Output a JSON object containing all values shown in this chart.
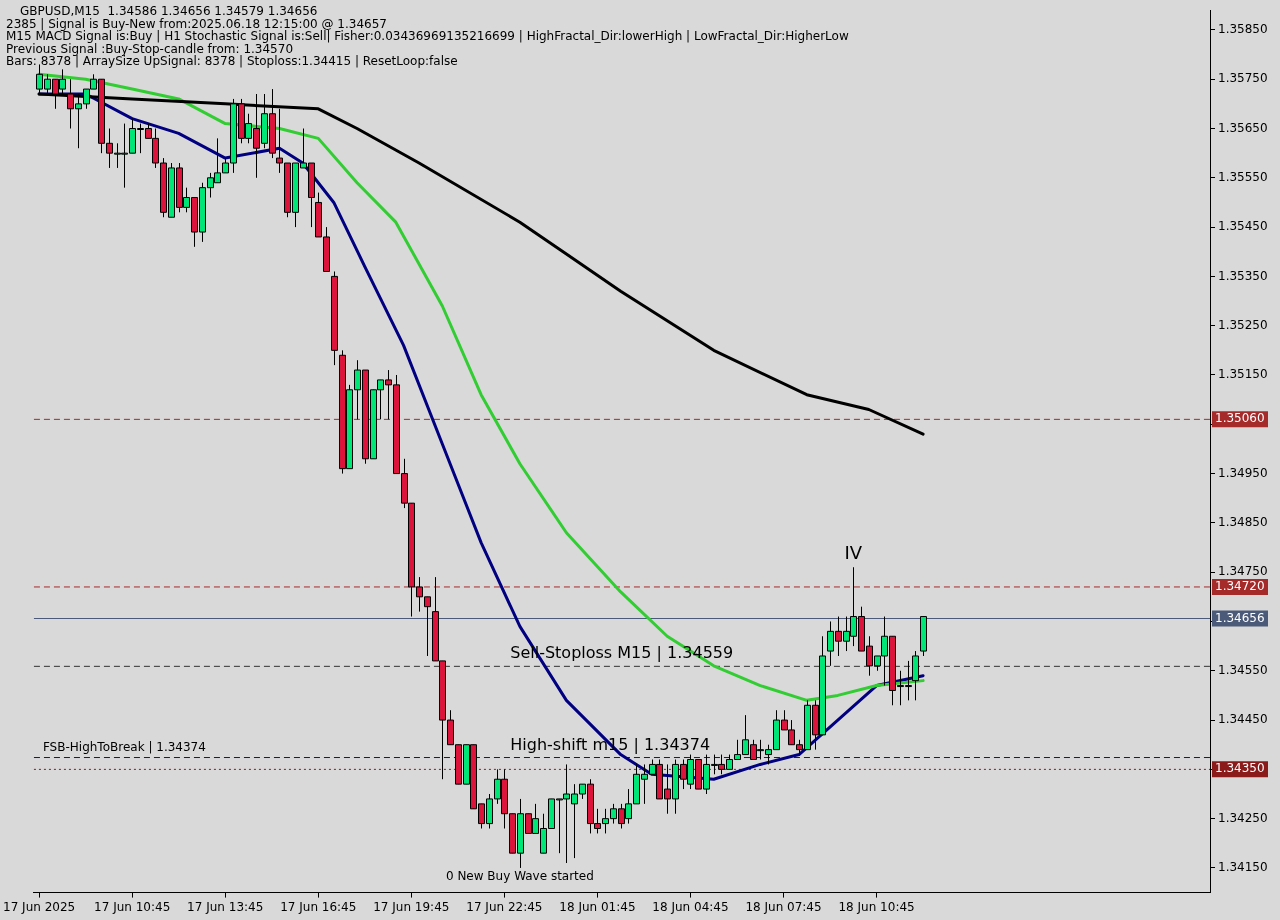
{
  "chart_data": {
    "type": "candlestick",
    "x": [
      "2025-06-17T07:45",
      "2025-06-17T08:00",
      "2025-06-17T08:15",
      "2025-06-17T08:30",
      "2025-06-17T08:45",
      "2025-06-17T09:00",
      "2025-06-17T09:15",
      "2025-06-17T09:30",
      "2025-06-17T09:45",
      "2025-06-17T10:00",
      "2025-06-17T10:15",
      "2025-06-17T10:30",
      "2025-06-17T10:45",
      "2025-06-17T11:00",
      "2025-06-17T11:15",
      "2025-06-17T11:30",
      "2025-06-17T11:45",
      "2025-06-17T12:00",
      "2025-06-17T12:15",
      "2025-06-17T12:30",
      "2025-06-17T12:45",
      "2025-06-17T13:00",
      "2025-06-17T13:15",
      "2025-06-17T13:30",
      "2025-06-17T13:45",
      "2025-06-17T14:00",
      "2025-06-17T14:15",
      "2025-06-17T14:30",
      "2025-06-17T14:45",
      "2025-06-17T15:00",
      "2025-06-17T15:15",
      "2025-06-17T15:30",
      "2025-06-17T15:45",
      "2025-06-17T16:00",
      "2025-06-17T16:15",
      "2025-06-17T16:30",
      "2025-06-17T16:45",
      "2025-06-17T17:00",
      "2025-06-17T17:15",
      "2025-06-17T17:30",
      "2025-06-17T17:45",
      "2025-06-17T18:00",
      "2025-06-17T18:15",
      "2025-06-17T18:30",
      "2025-06-17T18:45",
      "2025-06-17T19:00",
      "2025-06-17T19:15",
      "2025-06-17T19:30",
      "2025-06-17T19:45",
      "2025-06-17T20:00",
      "2025-06-17T20:15",
      "2025-06-17T20:30",
      "2025-06-17T20:45",
      "2025-06-17T21:00",
      "2025-06-17T21:15",
      "2025-06-17T21:30",
      "2025-06-17T21:45",
      "2025-06-17T22:00",
      "2025-06-17T22:15",
      "2025-06-17T22:30",
      "2025-06-17T22:45",
      "2025-06-17T23:00",
      "2025-06-17T23:15",
      "2025-06-17T23:30",
      "2025-06-17T23:45",
      "2025-06-18T00:00",
      "2025-06-18T00:15",
      "2025-06-18T00:30",
      "2025-06-18T00:45",
      "2025-06-18T01:00",
      "2025-06-18T01:15",
      "2025-06-18T01:30",
      "2025-06-18T01:45",
      "2025-06-18T02:00",
      "2025-06-18T02:15",
      "2025-06-18T02:30",
      "2025-06-18T02:45",
      "2025-06-18T03:00",
      "2025-06-18T03:15",
      "2025-06-18T03:30",
      "2025-06-18T03:45",
      "2025-06-18T04:00",
      "2025-06-18T04:15",
      "2025-06-18T04:30",
      "2025-06-18T04:45",
      "2025-06-18T05:00",
      "2025-06-18T05:15",
      "2025-06-18T05:30",
      "2025-06-18T05:45",
      "2025-06-18T06:00",
      "2025-06-18T06:15",
      "2025-06-18T06:30",
      "2025-06-18T06:45",
      "2025-06-18T07:00",
      "2025-06-18T07:15",
      "2025-06-18T07:30",
      "2025-06-18T07:45",
      "2025-06-18T08:00",
      "2025-06-18T08:15",
      "2025-06-18T08:30",
      "2025-06-18T08:45",
      "2025-06-18T09:00",
      "2025-06-18T09:15",
      "2025-06-18T09:30",
      "2025-06-18T09:45",
      "2025-06-18T10:00",
      "2025-06-18T10:15",
      "2025-06-18T10:30",
      "2025-06-18T10:45",
      "2025-06-18T11:00",
      "2025-06-18T11:15",
      "2025-06-18T11:30",
      "2025-06-18T11:45",
      "2025-06-18T12:00",
      "2025-06-18T12:15"
    ],
    "ohlc": [
      [
        1.3573,
        1.3578,
        1.3572,
        1.3576
      ],
      [
        1.3573,
        1.3576,
        1.3572,
        1.3575
      ],
      [
        1.3575,
        1.3575,
        1.3569,
        1.3572
      ],
      [
        1.3573,
        1.3577,
        1.3572,
        1.3575
      ],
      [
        1.3572,
        1.3575,
        1.3565,
        1.3569
      ],
      [
        1.3569,
        1.3572,
        1.3561,
        1.357
      ],
      [
        1.357,
        1.3573,
        1.3569,
        1.3573
      ],
      [
        1.3573,
        1.3576,
        1.3573,
        1.3575
      ],
      [
        1.3575,
        1.3575,
        1.356,
        1.3562
      ],
      [
        1.3562,
        1.3565,
        1.3557,
        1.356
      ],
      [
        1.356,
        1.3562,
        1.3557,
        1.356
      ],
      [
        1.356,
        1.3566,
        1.3553,
        1.356
      ],
      [
        1.356,
        1.3567,
        1.356,
        1.3565
      ],
      [
        1.3565,
        1.3566,
        1.356,
        1.3565
      ],
      [
        1.3565,
        1.3566,
        1.3563,
        1.3563
      ],
      [
        1.3563,
        1.3565,
        1.3557,
        1.3558
      ],
      [
        1.3558,
        1.3559,
        1.3547,
        1.3548
      ],
      [
        1.3547,
        1.3558,
        1.3547,
        1.3557
      ],
      [
        1.3557,
        1.3558,
        1.3548,
        1.3549
      ],
      [
        1.3549,
        1.3553,
        1.3548,
        1.3551
      ],
      [
        1.3551,
        1.3551,
        1.3541,
        1.3544
      ],
      [
        1.3544,
        1.3554,
        1.3542,
        1.3553
      ],
      [
        1.3553,
        1.3556,
        1.3551,
        1.3555
      ],
      [
        1.3554,
        1.3563,
        1.3554,
        1.3556
      ],
      [
        1.3556,
        1.3559,
        1.3556,
        1.3558
      ],
      [
        1.3558,
        1.3571,
        1.3556,
        1.357
      ],
      [
        1.357,
        1.3571,
        1.3562,
        1.3563
      ],
      [
        1.3563,
        1.3568,
        1.3562,
        1.3566
      ],
      [
        1.3565,
        1.3572,
        1.3555,
        1.3561
      ],
      [
        1.3562,
        1.3572,
        1.3561,
        1.3568
      ],
      [
        1.3568,
        1.3573,
        1.3559,
        1.356
      ],
      [
        1.3559,
        1.3569,
        1.3556,
        1.3558
      ],
      [
        1.3558,
        1.3558,
        1.3547,
        1.3548
      ],
      [
        1.3548,
        1.3558,
        1.3545,
        1.3558
      ],
      [
        1.3557,
        1.3565,
        1.3557,
        1.3558
      ],
      [
        1.3558,
        1.3558,
        1.3545,
        1.3551
      ],
      [
        1.355,
        1.3552,
        1.3543,
        1.3543
      ],
      [
        1.3543,
        1.3545,
        1.3536,
        1.3536
      ],
      [
        1.3535,
        1.3536,
        1.3517,
        1.352
      ],
      [
        1.3519,
        1.352,
        1.3495,
        1.3496
      ],
      [
        1.3496,
        1.3513,
        1.3496,
        1.3512
      ],
      [
        1.3512,
        1.3518,
        1.3506,
        1.3516
      ],
      [
        1.3516,
        1.3516,
        1.3497,
        1.3498
      ],
      [
        1.3498,
        1.3512,
        1.3498,
        1.3512
      ],
      [
        1.3512,
        1.3514,
        1.3506,
        1.3514
      ],
      [
        1.3514,
        1.3516,
        1.3506,
        1.3513
      ],
      [
        1.3513,
        1.3515,
        1.3495,
        1.3495
      ],
      [
        1.3495,
        1.3498,
        1.3488,
        1.3489
      ],
      [
        1.3489,
        1.3489,
        1.3466,
        1.3472
      ],
      [
        1.3472,
        1.3474,
        1.3467,
        1.347
      ],
      [
        1.347,
        1.347,
        1.3458,
        1.3468
      ],
      [
        1.3467,
        1.3474,
        1.3457,
        1.3457
      ],
      [
        1.3457,
        1.3457,
        1.3433,
        1.3445
      ],
      [
        1.3445,
        1.3447,
        1.344,
        1.344
      ],
      [
        1.344,
        1.344,
        1.3432,
        1.3432
      ],
      [
        1.3432,
        1.344,
        1.3432,
        1.344
      ],
      [
        1.344,
        1.344,
        1.3427,
        1.3427
      ],
      [
        1.3428,
        1.3428,
        1.3423,
        1.3424
      ],
      [
        1.3424,
        1.343,
        1.3423,
        1.3429
      ],
      [
        1.3429,
        1.3435,
        1.3428,
        1.3433
      ],
      [
        1.3433,
        1.3435,
        1.3423,
        1.3426
      ],
      [
        1.3426,
        1.3426,
        1.3418,
        1.3418
      ],
      [
        1.3418,
        1.3429,
        1.3415,
        1.3426
      ],
      [
        1.3426,
        1.3426,
        1.3422,
        1.3422
      ],
      [
        1.3422,
        1.3428,
        1.3422,
        1.3425
      ],
      [
        1.3418,
        1.3426,
        1.3418,
        1.3423
      ],
      [
        1.3423,
        1.3429,
        1.3423,
        1.3429
      ],
      [
        1.3429,
        1.3429,
        1.3418,
        1.3429
      ],
      [
        1.3429,
        1.3436,
        1.3416,
        1.343
      ],
      [
        1.3428,
        1.3432,
        1.3417,
        1.343
      ],
      [
        1.343,
        1.3432,
        1.3429,
        1.3432
      ],
      [
        1.3432,
        1.3433,
        1.3422,
        1.3424
      ],
      [
        1.3424,
        1.3427,
        1.3422,
        1.3423
      ],
      [
        1.3424,
        1.3427,
        1.3422,
        1.3425
      ],
      [
        1.3425,
        1.3428,
        1.3424,
        1.3427
      ],
      [
        1.3427,
        1.3428,
        1.3423,
        1.3424
      ],
      [
        1.3425,
        1.3431,
        1.3424,
        1.3428
      ],
      [
        1.3428,
        1.3436,
        1.3428,
        1.3434
      ],
      [
        1.3433,
        1.3436,
        1.3428,
        1.3434
      ],
      [
        1.3434,
        1.3437,
        1.3434,
        1.3436
      ],
      [
        1.3436,
        1.3437,
        1.3429,
        1.3429
      ],
      [
        1.3431,
        1.3436,
        1.3426,
        1.3429
      ],
      [
        1.3429,
        1.3437,
        1.3426,
        1.3436
      ],
      [
        1.3436,
        1.3437,
        1.3431,
        1.3433
      ],
      [
        1.3432,
        1.3438,
        1.3431,
        1.3437
      ],
      [
        1.3437,
        1.3437,
        1.3431,
        1.3431
      ],
      [
        1.3431,
        1.3438,
        1.343,
        1.3436
      ],
      [
        1.3436,
        1.3438,
        1.3434,
        1.3436
      ],
      [
        1.3436,
        1.3438,
        1.3434,
        1.3435
      ],
      [
        1.3435,
        1.3438,
        1.3435,
        1.3437
      ],
      [
        1.3437,
        1.3441,
        1.3437,
        1.3438
      ],
      [
        1.3438,
        1.3446,
        1.3438,
        1.3441
      ],
      [
        1.344,
        1.3441,
        1.3437,
        1.3437
      ],
      [
        1.3439,
        1.3441,
        1.3437,
        1.3439
      ],
      [
        1.3438,
        1.344,
        1.3436,
        1.3439
      ],
      [
        1.3439,
        1.3447,
        1.3439,
        1.3445
      ],
      [
        1.3445,
        1.3447,
        1.3443,
        1.3443
      ],
      [
        1.3443,
        1.3445,
        1.344,
        1.344
      ],
      [
        1.344,
        1.3441,
        1.3438,
        1.3439
      ],
      [
        1.3439,
        1.3449,
        1.3439,
        1.3448
      ],
      [
        1.3448,
        1.3449,
        1.3439,
        1.3442
      ],
      [
        1.3442,
        1.3462,
        1.3442,
        1.3458
      ],
      [
        1.3459,
        1.3465,
        1.3456,
        1.3463
      ],
      [
        1.3463,
        1.3466,
        1.3458,
        1.3461
      ],
      [
        1.3461,
        1.3466,
        1.3459,
        1.3463
      ],
      [
        1.3462,
        1.3476,
        1.346,
        1.3466
      ],
      [
        1.3466,
        1.3468,
        1.3459,
        1.3459
      ],
      [
        1.346,
        1.3462,
        1.3454,
        1.3456
      ],
      [
        1.3456,
        1.3458,
        1.3455,
        1.3458
      ],
      [
        1.3458,
        1.3466,
        1.3452,
        1.3462
      ],
      [
        1.3462,
        1.3462,
        1.3448,
        1.3451
      ],
      [
        1.3452,
        1.3455,
        1.3448,
        1.3452
      ],
      [
        1.3452,
        1.3457,
        1.3449,
        1.3452
      ],
      [
        1.3453,
        1.3459,
        1.3449,
        1.3458
      ],
      [
        1.3459,
        1.3466,
        1.3458,
        1.3466
      ]
    ],
    "colors": [
      "#00e676",
      "#00e676",
      "#dc143c",
      "#00e676",
      "#dc143c",
      "#00e676",
      "#00e676",
      "#00e676",
      "#dc143c",
      "#dc143c",
      "#00e676",
      "#00e676",
      "#00e676",
      "#00e676",
      "#dc143c",
      "#dc143c",
      "#dc143c",
      "#00e676",
      "#dc143c",
      "#00e676",
      "#dc143c",
      "#00e676",
      "#00e676",
      "#00e676",
      "#00e676",
      "#00e676",
      "#dc143c",
      "#00e676",
      "#dc143c",
      "#00e676",
      "#dc143c",
      "#dc143c",
      "#dc143c",
      "#00e676",
      "#00e676",
      "#dc143c",
      "#dc143c",
      "#dc143c",
      "#dc143c",
      "#dc143c",
      "#00e676",
      "#00e676",
      "#dc143c",
      "#00e676",
      "#00e676",
      "#dc143c",
      "#dc143c",
      "#dc143c",
      "#dc143c",
      "#dc143c",
      "#dc143c",
      "#dc143c",
      "#dc143c",
      "#dc143c",
      "#dc143c",
      "#00e676",
      "#dc143c",
      "#dc143c",
      "#00e676",
      "#00e676",
      "#dc143c",
      "#dc143c",
      "#00e676",
      "#dc143c",
      "#00e676",
      "#00e676",
      "#00e676",
      "#00e676",
      "#00e676",
      "#00e676",
      "#00e676",
      "#dc143c",
      "#dc143c",
      "#00e676",
      "#00e676",
      "#dc143c",
      "#00e676",
      "#00e676",
      "#00e676",
      "#00e676",
      "#dc143c",
      "#dc143c",
      "#00e676",
      "#dc143c",
      "#00e676",
      "#dc143c",
      "#00e676",
      "#00e676",
      "#dc143c",
      "#00e676",
      "#00e676",
      "#00e676",
      "#dc143c",
      "#00e676",
      "#00e676",
      "#00e676",
      "#dc143c",
      "#dc143c",
      "#dc143c",
      "#00e676",
      "#dc143c",
      "#00e676",
      "#00e676",
      "#dc143c",
      "#00e676",
      "#00e676",
      "#dc143c",
      "#dc143c",
      "#00e676",
      "#00e676",
      "#dc143c",
      "#00e676",
      "#00e676",
      "#00e676",
      "#00e676"
    ],
    "series": [
      {
        "type": "line",
        "color": "#000000",
        "x": [
          "2025-06-17T07:45",
          "2025-06-17T10:45",
          "2025-06-17T13:45",
          "2025-06-17T16:45",
          "2025-06-17T18:00",
          "2025-06-17T20:00",
          "2025-06-17T23:15",
          "2025-06-18T02:30",
          "2025-06-18T05:30",
          "2025-06-18T08:30",
          "2025-06-18T10:30",
          "2025-06-18T12:15"
        ],
        "values": [
          1.3572,
          1.3571,
          1.357,
          1.3569,
          1.3565,
          1.3558,
          1.3546,
          1.3532,
          1.352,
          1.3511,
          1.3508,
          1.3503
        ]
      },
      {
        "type": "line",
        "color": "#32cd32",
        "x": [
          "2025-06-17T07:45",
          "2025-06-17T09:15",
          "2025-06-17T10:45",
          "2025-06-17T12:15",
          "2025-06-17T13:45",
          "2025-06-17T15:30",
          "2025-06-17T16:45",
          "2025-06-17T18:00",
          "2025-06-17T19:15",
          "2025-06-17T20:45",
          "2025-06-17T22:00",
          "2025-06-17T23:15",
          "2025-06-18T00:45",
          "2025-06-18T02:30",
          "2025-06-18T04:00",
          "2025-06-18T05:30",
          "2025-06-18T07:00",
          "2025-06-18T08:30",
          "2025-06-18T09:30",
          "2025-06-18T10:45",
          "2025-06-18T12:15"
        ],
        "values": [
          1.3576,
          1.3575,
          1.3573,
          1.3571,
          1.3566,
          1.3565,
          1.3563,
          1.3554,
          1.3546,
          1.3529,
          1.3511,
          1.3497,
          1.3483,
          1.3471,
          1.3462,
          1.3456,
          1.3452,
          1.3449,
          1.345,
          1.3452,
          1.3453
        ]
      },
      {
        "type": "line",
        "color": "#000080",
        "x": [
          "2025-06-17T07:45",
          "2025-06-17T09:15",
          "2025-06-17T10:45",
          "2025-06-17T12:15",
          "2025-06-17T13:45",
          "2025-06-17T15:30",
          "2025-06-17T16:15",
          "2025-06-17T17:15",
          "2025-06-17T18:15",
          "2025-06-17T19:30",
          "2025-06-17T20:45",
          "2025-06-17T22:00",
          "2025-06-17T23:15",
          "2025-06-18T00:45",
          "2025-06-18T02:30",
          "2025-06-18T03:30",
          "2025-06-18T05:30",
          "2025-06-18T07:00",
          "2025-06-18T08:15",
          "2025-06-18T09:30",
          "2025-06-18T10:45",
          "2025-06-18T12:15"
        ],
        "values": [
          1.3572,
          1.3572,
          1.3567,
          1.3564,
          1.3559,
          1.3561,
          1.3558,
          1.355,
          1.3537,
          1.3521,
          1.3501,
          1.3481,
          1.3464,
          1.3449,
          1.3438,
          1.3434,
          1.3433,
          1.3436,
          1.3438,
          1.3445,
          1.3452,
          1.3454
        ]
      }
    ],
    "xlim": [
      "2025-06-17T07:35",
      "2025-06-18T21:30"
    ],
    "xticks": [
      {
        "value": "2025-06-17T07:45",
        "label": "17 Jun 2025"
      },
      {
        "value": "2025-06-17T10:45",
        "label": "17 Jun 10:45"
      },
      {
        "value": "2025-06-17T13:45",
        "label": "17 Jun 13:45"
      },
      {
        "value": "2025-06-17T16:45",
        "label": "17 Jun 16:45"
      },
      {
        "value": "2025-06-17T19:45",
        "label": "17 Jun 19:45"
      },
      {
        "value": "2025-06-17T22:45",
        "label": "17 Jun 22:45"
      },
      {
        "value": "2025-06-18T01:45",
        "label": "18 Jun 01:45"
      },
      {
        "value": "2025-06-18T04:45",
        "label": "18 Jun 04:45"
      },
      {
        "value": "2025-06-18T07:45",
        "label": "18 Jun 07:45"
      },
      {
        "value": "2025-06-18T10:45",
        "label": "18 Jun 10:45"
      }
    ],
    "ylim": [
      1.341,
      1.3589
    ],
    "yticks": [
      {
        "value": 1.3415,
        "label": "1.34150"
      },
      {
        "value": 1.3425,
        "label": "1.34250"
      },
      {
        "value": 1.3435,
        "label": null
      },
      {
        "value": 1.3445,
        "label": "1.34450"
      },
      {
        "value": 1.3455,
        "label": "1.34550"
      },
      {
        "value": 1.3465,
        "label": null
      },
      {
        "value": 1.3475,
        "label": "1.34750"
      },
      {
        "value": 1.3485,
        "label": "1.34850"
      },
      {
        "value": 1.3495,
        "label": "1.34950"
      },
      {
        "value": 1.3505,
        "label": null
      },
      {
        "value": 1.3515,
        "label": "1.35150"
      },
      {
        "value": 1.3525,
        "label": "1.35250"
      },
      {
        "value": 1.3535,
        "label": "1.35350"
      },
      {
        "value": 1.3545,
        "label": "1.35450"
      },
      {
        "value": 1.3555,
        "label": "1.35550"
      },
      {
        "value": 1.3565,
        "label": "1.35650"
      },
      {
        "value": 1.3575,
        "label": "1.35750"
      },
      {
        "value": 1.3585,
        "label": "1.35850"
      }
    ],
    "ref_lines": [
      {
        "axis": "y",
        "value": 1.3506,
        "label": "1.35060",
        "color": "#a52a2a",
        "line_style": "dashed"
      },
      {
        "axis": "y",
        "value": 1.3472,
        "label": "1.34720",
        "color": "#a52a2a",
        "line_style": "dashed"
      },
      {
        "axis": "y",
        "value": 1.34656,
        "label": "1.34656",
        "color": "#4a5a78",
        "line_style": "solid"
      },
      {
        "axis": "y",
        "value": 1.34559,
        "label": "Sell-Stoploss M15 | 1.34559",
        "color": "#333333",
        "line_style": "dashed"
      },
      {
        "axis": "y",
        "value": 1.34374,
        "label": "High-shift m15 | 1.34374",
        "color": "#0000ff",
        "line_style": "dashed"
      },
      {
        "axis": "y",
        "value": 1.3435,
        "label": "1.34350",
        "color": "#8b1a1a",
        "line_style": "dotted"
      }
    ],
    "annotations": [
      "GBPUSD,M15  1.34586 1.34656 1.34579 1.34656",
      "2385 | Signal is Buy-New from:2025.06.18 12:15:00 @ 1.34657",
      "M15 MACD Signal is:Buy | H1 Stochastic Signal is:Sell| Fisher:0.03436969135216699 | HighFractal_Dir:lowerHigh | LowFractal_Dir:HigherLow",
      "Previous Signal :Buy-Stop-candle from: 1.34570",
      "Bars: 8378 | ArraySize UpSignal: 8378 | Stoploss:1.34415 | ResetLoop:false",
      {
        "text": "FSB-HighToBreak | 1.34374",
        "x": "2025-06-17T10:30",
        "y": 1.34374
      },
      {
        "text": "IV",
        "x": "2025-06-18T10:00",
        "y": 1.3476
      },
      {
        "text": "0 New Buy Wave started",
        "x": "2025-06-17T23:15",
        "y": 1.3415
      }
    ],
    "grid": false,
    "legend": false
  }
}
